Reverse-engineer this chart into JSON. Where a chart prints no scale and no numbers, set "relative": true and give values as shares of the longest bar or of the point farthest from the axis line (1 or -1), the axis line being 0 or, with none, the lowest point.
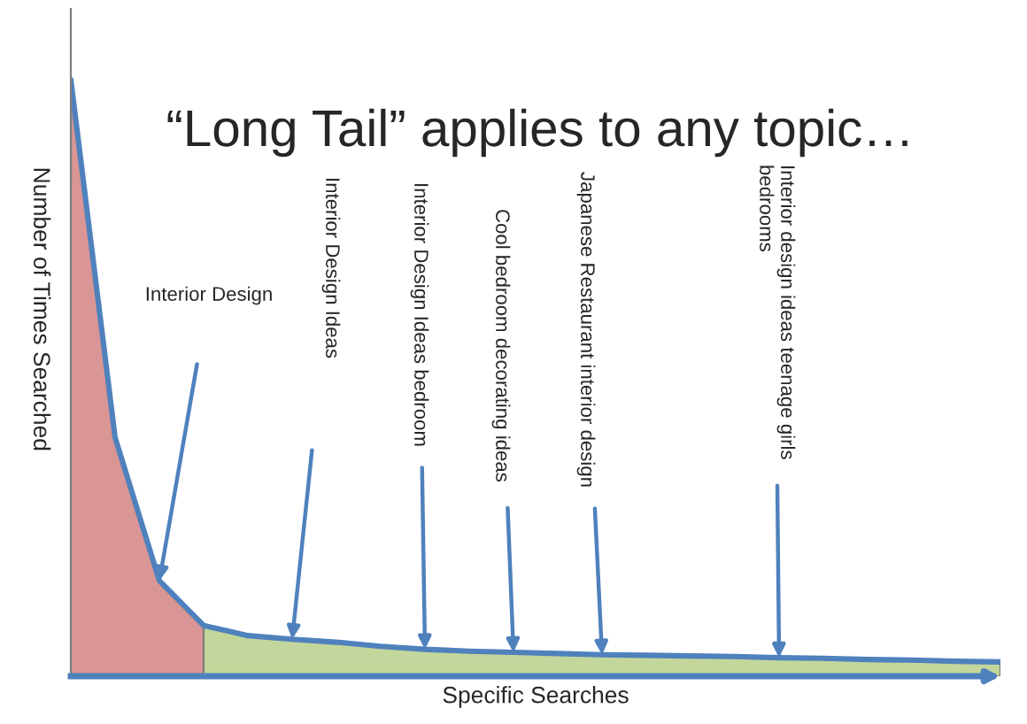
{
  "chart_data": {
    "type": "area",
    "relative": true,
    "title": "“Long Tail” applies to any topic…",
    "xlabel": "Specific Searches",
    "ylabel": "Number of Times Searched",
    "tick_labels": false,
    "legend": false,
    "categories": [
      null,
      null,
      null,
      null,
      null,
      null,
      null,
      null,
      null,
      null,
      null,
      null,
      null,
      null,
      null,
      null,
      null,
      null,
      null,
      null,
      null,
      null
    ],
    "series": [
      {
        "color": "#d99694",
        "values": [
          1.0,
          0.4,
          0.16,
          0.085,
          null,
          null,
          null,
          null,
          null,
          null,
          null,
          null,
          null,
          null,
          null,
          null,
          null,
          null,
          null,
          null,
          null,
          null
        ]
      },
      {
        "color": "#c3d69b",
        "values": [
          null,
          null,
          null,
          0.085,
          0.068,
          0.062,
          0.057,
          0.05,
          0.045,
          0.042,
          0.04,
          0.038,
          0.036,
          0.035,
          0.034,
          0.033,
          0.031,
          0.03,
          0.028,
          0.027,
          0.025,
          0.024
        ]
      },
      {
        "type": "line",
        "color": "#4f81bd",
        "values": [
          1.0,
          0.4,
          0.16,
          0.085,
          0.068,
          0.062,
          0.057,
          0.05,
          0.045,
          0.042,
          0.04,
          0.038,
          0.036,
          0.035,
          0.034,
          0.033,
          0.031,
          0.03,
          0.028,
          0.027,
          0.025,
          0.024
        ]
      }
    ],
    "annotations": [
      "Interior Design",
      "Interior Design Ideas",
      "Interior Design Ideas bedroom",
      "Cool bedroom decorating ideas",
      "Japanese Restaurant interior design",
      "Interior design ideas teenage girls\nbedrooms"
    ]
  }
}
